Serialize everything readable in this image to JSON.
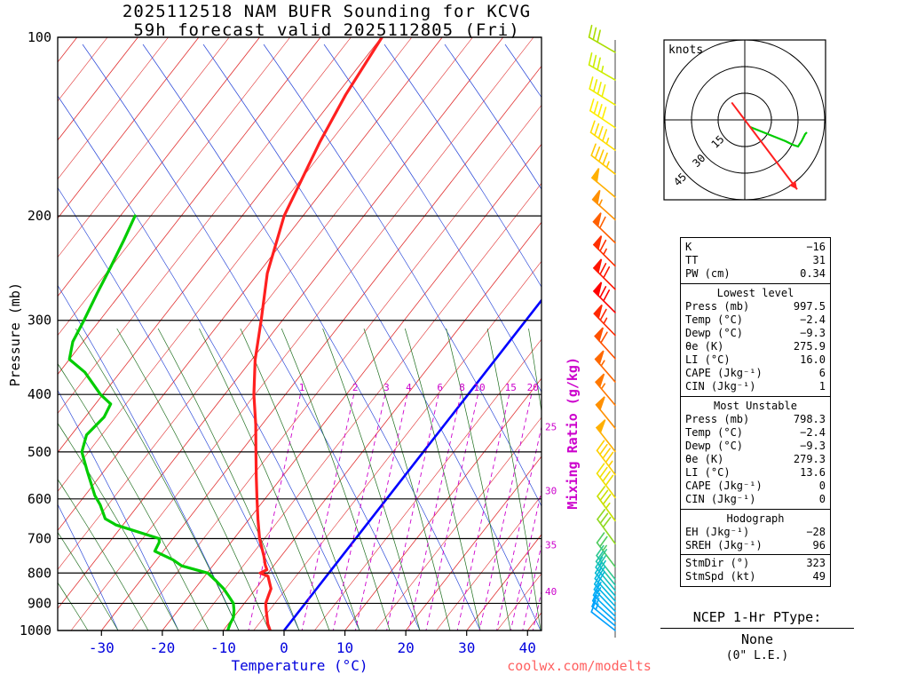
{
  "title": {
    "line1": "2025112518 NAM BUFR Sounding for KCVG",
    "line2": "59h forecast valid 2025112805 (Fri)"
  },
  "axes": {
    "pressure_label": "Pressure (mb)",
    "temperature_label": "Temperature (°C)",
    "mixing_ratio_label": "Mixing Ratio (g/kg)"
  },
  "watermark": "coolwx.com/modelts",
  "hodograph_panel": {
    "units_label": "knots"
  },
  "ptype": {
    "title": "NCEP 1-Hr PType:",
    "value": "None",
    "note": "(0\" L.E.)"
  },
  "panels": [
    {
      "rows": [
        [
          "K",
          "−16"
        ],
        [
          "TT",
          "31"
        ],
        [
          "PW (cm)",
          "0.34"
        ]
      ]
    },
    {
      "title": "Lowest level",
      "rows": [
        [
          "Press (mb)",
          "997.5"
        ],
        [
          "Temp (°C)",
          "−2.4"
        ],
        [
          "Dewp (°C)",
          "−9.3"
        ],
        [
          "θe (K)",
          "275.9"
        ],
        [
          "LI (°C)",
          "16.0"
        ],
        [
          "CAPE (Jkg⁻¹)",
          "6"
        ],
        [
          "CIN (Jkg⁻¹)",
          "1"
        ]
      ]
    },
    {
      "title": "Most Unstable",
      "rows": [
        [
          "Press (mb)",
          "798.3"
        ],
        [
          "Temp (°C)",
          "−2.4"
        ],
        [
          "Dewp (°C)",
          "−9.3"
        ],
        [
          "θe (K)",
          "279.3"
        ],
        [
          "LI (°C)",
          "13.6"
        ],
        [
          "CAPE (Jkg⁻¹)",
          "0"
        ],
        [
          "CIN (Jkg⁻¹)",
          "0"
        ]
      ]
    },
    {
      "title": "Hodograph",
      "rows": [
        [
          "EH (Jkg⁻¹)",
          "−28"
        ],
        [
          "SREH (Jkg⁻¹)",
          "96"
        ],
        [
          "StmDir (°)",
          "323"
        ],
        [
          "StmSpd (kt)",
          "49"
        ]
      ],
      "separator_before": 2
    }
  ],
  "chart_data": {
    "type": "skewt-log-p-sounding",
    "title": "2025112518 NAM BUFR Sounding for KCVG",
    "subtitle": "59h forecast valid 2025112805 (Fri)",
    "pressure_ticks": [
      100,
      200,
      300,
      400,
      500,
      600,
      700,
      800,
      900,
      1000
    ],
    "temperature_ticks": [
      -30,
      -20,
      -10,
      0,
      10,
      20,
      30,
      40
    ],
    "pressure_range_mb": [
      100,
      1000
    ],
    "temperature_range_c": [
      -30,
      40
    ],
    "mixing_ratio_lines": [
      1,
      2,
      3,
      4,
      6,
      8,
      10,
      15,
      20,
      25,
      30,
      35,
      40
    ],
    "colors": {
      "temperature": "#ff2020",
      "dewpoint": "#00cc00",
      "isotherm": "#e03030",
      "dry_adiabat": "#2846d8",
      "moist_adiabat": "#1e6e1e",
      "mixing_ratio": "#cc00cc",
      "zero_isotherm": "#0000ff"
    },
    "temperature_profile": [
      [
        997.5,
        -2.4
      ],
      [
        975,
        -3.5
      ],
      [
        950,
        -4.5
      ],
      [
        925,
        -5.5
      ],
      [
        900,
        -6.5
      ],
      [
        875,
        -7.0
      ],
      [
        850,
        -7.5
      ],
      [
        825,
        -8.8
      ],
      [
        810,
        -9.6
      ],
      [
        800,
        -11.3
      ],
      [
        790,
        -10.6
      ],
      [
        775,
        -11.5
      ],
      [
        750,
        -12.8
      ],
      [
        700,
        -15.8
      ],
      [
        650,
        -18.5
      ],
      [
        600,
        -21.3
      ],
      [
        550,
        -24.3
      ],
      [
        500,
        -27.5
      ],
      [
        450,
        -31.0
      ],
      [
        400,
        -35.2
      ],
      [
        350,
        -39.4
      ],
      [
        300,
        -43.5
      ],
      [
        250,
        -48.5
      ],
      [
        200,
        -53.1
      ],
      [
        150,
        -56.7
      ],
      [
        125,
        -58.5
      ],
      [
        100,
        -59.9
      ]
    ],
    "dewpoint_profile": [
      [
        997.5,
        -9.3
      ],
      [
        975,
        -9.7
      ],
      [
        950,
        -10.0
      ],
      [
        925,
        -10.8
      ],
      [
        900,
        -11.8
      ],
      [
        875,
        -13.5
      ],
      [
        850,
        -15.3
      ],
      [
        825,
        -17.5
      ],
      [
        800,
        -19.9
      ],
      [
        778,
        -25.1
      ],
      [
        760,
        -27.3
      ],
      [
        735,
        -31.4
      ],
      [
        710,
        -31.8
      ],
      [
        700,
        -32.3
      ],
      [
        664,
        -41.1
      ],
      [
        648,
        -43.7
      ],
      [
        614,
        -46.3
      ],
      [
        592,
        -48.4
      ],
      [
        537,
        -52.9
      ],
      [
        500,
        -56.1
      ],
      [
        468,
        -57.5
      ],
      [
        437,
        -56.9
      ],
      [
        415,
        -57.5
      ],
      [
        400,
        -60.4
      ],
      [
        367,
        -65.8
      ],
      [
        349,
        -70.0
      ],
      [
        326,
        -71.7
      ],
      [
        300,
        -72.6
      ],
      [
        270,
        -73.9
      ],
      [
        243,
        -75.1
      ],
      [
        220,
        -76.3
      ],
      [
        200,
        -77.6
      ]
    ],
    "winds": [
      {
        "p": 106,
        "spd": 32,
        "dir": 300,
        "color": "#aadd00"
      },
      {
        "p": 118,
        "spd": 35,
        "dir": 300,
        "color": "#ccee00"
      },
      {
        "p": 130,
        "spd": 38,
        "dir": 302,
        "color": "#eeee00"
      },
      {
        "p": 142,
        "spd": 40,
        "dir": 304,
        "color": "#ffee00"
      },
      {
        "p": 155,
        "spd": 43,
        "dir": 306,
        "color": "#ffdd00"
      },
      {
        "p": 170,
        "spd": 46,
        "dir": 308,
        "color": "#ffc800"
      },
      {
        "p": 186,
        "spd": 50,
        "dir": 310,
        "color": "#ffb000"
      },
      {
        "p": 203,
        "spd": 55,
        "dir": 312,
        "color": "#ff9000"
      },
      {
        "p": 222,
        "spd": 60,
        "dir": 314,
        "color": "#ff6000"
      },
      {
        "p": 243,
        "spd": 65,
        "dir": 315,
        "color": "#ff3000"
      },
      {
        "p": 266,
        "spd": 68,
        "dir": 315,
        "color": "#ff1500"
      },
      {
        "p": 291,
        "spd": 70,
        "dir": 315,
        "color": "#ff0000"
      },
      {
        "p": 318,
        "spd": 65,
        "dir": 316,
        "color": "#ff2800"
      },
      {
        "p": 348,
        "spd": 60,
        "dir": 318,
        "color": "#ff5000"
      },
      {
        "p": 381,
        "spd": 57,
        "dir": 319,
        "color": "#ff6800"
      },
      {
        "p": 417,
        "spd": 55,
        "dir": 320,
        "color": "#ff7800"
      },
      {
        "p": 456,
        "spd": 52,
        "dir": 321,
        "color": "#ff9000"
      },
      {
        "p": 499,
        "spd": 48,
        "dir": 322,
        "color": "#ffb000"
      },
      {
        "p": 546,
        "spd": 43,
        "dir": 323,
        "color": "#ffd000"
      },
      {
        "p": 597,
        "spd": 38,
        "dir": 323,
        "color": "#f0e000"
      },
      {
        "p": 653,
        "spd": 33,
        "dir": 324,
        "color": "#c8e000"
      },
      {
        "p": 714,
        "spd": 28,
        "dir": 324,
        "color": "#90d820"
      },
      {
        "p": 781,
        "spd": 24,
        "dir": 323,
        "color": "#50cc60"
      },
      {
        "p": 820,
        "spd": 22,
        "dir": 322,
        "color": "#30c890"
      },
      {
        "p": 838,
        "spd": 21,
        "dir": 321,
        "color": "#20c4a8"
      },
      {
        "p": 856,
        "spd": 20,
        "dir": 320,
        "color": "#10c0c0"
      },
      {
        "p": 874,
        "spd": 19,
        "dir": 319,
        "color": "#08bcd0"
      },
      {
        "p": 892,
        "spd": 18,
        "dir": 318,
        "color": "#04b8dc"
      },
      {
        "p": 910,
        "spd": 17,
        "dir": 317,
        "color": "#02b4e6"
      },
      {
        "p": 928,
        "spd": 16,
        "dir": 316,
        "color": "#01b0ee"
      },
      {
        "p": 946,
        "spd": 15,
        "dir": 314,
        "color": "#00acf4"
      },
      {
        "p": 964,
        "spd": 14,
        "dir": 312,
        "color": "#00a8f8"
      },
      {
        "p": 982,
        "spd": 13,
        "dir": 310,
        "color": "#00a4fb"
      },
      {
        "p": 1000,
        "spd": 12,
        "dir": 308,
        "color": "#00a0ff"
      }
    ],
    "hodograph": {
      "rings_kt": [
        15,
        30,
        45
      ],
      "units": "knots",
      "trace_uv_kt": [
        [
          3,
          -4
        ],
        [
          8,
          -6
        ],
        [
          13,
          -8
        ],
        [
          18,
          -10
        ],
        [
          23,
          -12
        ],
        [
          27,
          -14
        ],
        [
          30,
          -15
        ],
        [
          32,
          -12
        ],
        [
          34,
          -8
        ],
        [
          35,
          -7
        ]
      ],
      "storm_motion_dir_deg": 323,
      "storm_motion_spd_kt": 49
    },
    "indices": {
      "K": -16,
      "TT": 31,
      "PW_cm": 0.34,
      "lowest_level": {
        "press_mb": 997.5,
        "temp_c": -2.4,
        "dewp_c": -9.3,
        "theta_e_k": 275.9,
        "li_c": 16.0,
        "cape_jkg": 6,
        "cin_jkg": 1
      },
      "most_unstable": {
        "press_mb": 798.3,
        "temp_c": -2.4,
        "dewp_c": -9.3,
        "theta_e_k": 279.3,
        "li_c": 13.6,
        "cape_jkg": 0,
        "cin_jkg": 0
      },
      "hodograph": {
        "eh_jkg": -28,
        "sreh_jkg": 96,
        "stm_dir_deg": 323,
        "stm_spd_kt": 49
      }
    }
  }
}
